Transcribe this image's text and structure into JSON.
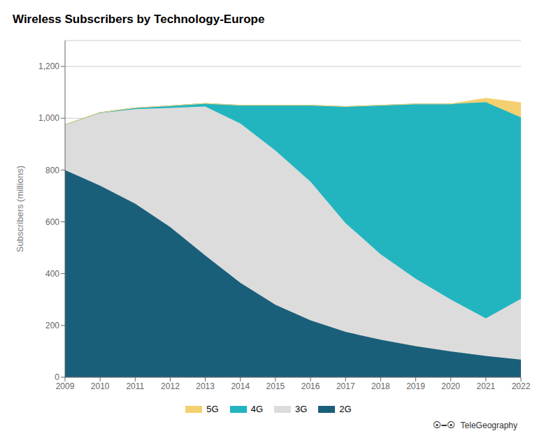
{
  "chart_data": {
    "type": "area",
    "title": "Wireless Subscribers by Technology-Europe",
    "ylabel": "Subscribers (millions)",
    "x": [
      2009,
      2010,
      2011,
      2012,
      2013,
      2014,
      2015,
      2016,
      2017,
      2018,
      2019,
      2020,
      2021,
      2022
    ],
    "series": [
      {
        "name": "2G",
        "color": "#1a5f7a",
        "values": [
          800,
          740,
          670,
          580,
          470,
          365,
          280,
          220,
          175,
          145,
          120,
          100,
          82,
          68
        ]
      },
      {
        "name": "3G",
        "color": "#dcdcdc",
        "values": [
          175,
          280,
          365,
          460,
          575,
          615,
          595,
          535,
          420,
          330,
          260,
          200,
          145,
          235
        ]
      },
      {
        "name": "4G",
        "color": "#22b5c0",
        "values": [
          0,
          2,
          5,
          8,
          12,
          70,
          175,
          295,
          450,
          575,
          675,
          755,
          835,
          700
        ]
      },
      {
        "name": "5G",
        "color": "#f5d070",
        "values": [
          0,
          0,
          0,
          0,
          0,
          0,
          0,
          0,
          0,
          0,
          0,
          0,
          15,
          57
        ]
      }
    ],
    "stacked": true,
    "xlim": [
      2009,
      2022
    ],
    "xticks": [
      2009,
      2010,
      2011,
      2012,
      2013,
      2014,
      2015,
      2016,
      2017,
      2018,
      2019,
      2020,
      2021,
      2022
    ],
    "ylim": [
      0,
      1300
    ],
    "yticks": [
      0,
      200,
      400,
      600,
      800,
      {
        "value": 1000,
        "label": "1,000"
      },
      {
        "value": 1200,
        "label": "1,200"
      }
    ],
    "grid": true,
    "legend": "bottom",
    "annotations": [
      "⦿━⦿",
      "TeleGeography"
    ]
  }
}
